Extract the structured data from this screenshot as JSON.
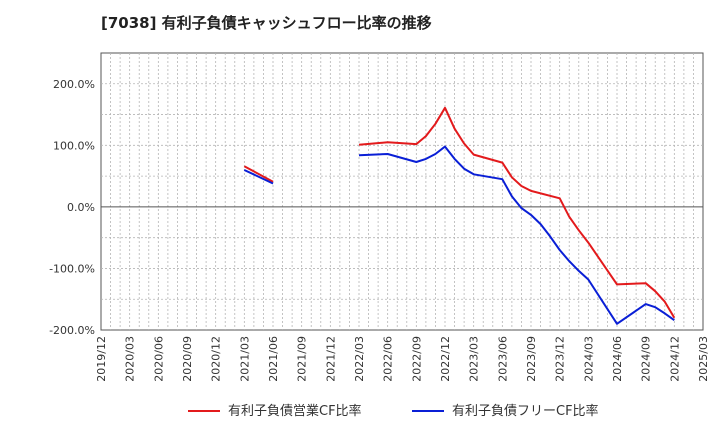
{
  "chart_data": {
    "type": "line",
    "title": "[7038]  有利子負債キャッシュフロー比率の推移",
    "xlabel": "",
    "ylabel": "",
    "x_ticks": [
      "2019/12",
      "2020/03",
      "2020/06",
      "2020/09",
      "2020/12",
      "2021/03",
      "2021/06",
      "2021/09",
      "2021/12",
      "2022/03",
      "2022/06",
      "2022/09",
      "2022/12",
      "2023/03",
      "2023/06",
      "2023/09",
      "2023/12",
      "2024/03",
      "2024/06",
      "2024/09",
      "2024/12",
      "2025/03"
    ],
    "y_ticks": [
      "200.0%",
      "100.0%",
      "0.0%",
      "-100.0%",
      "-200.0%"
    ],
    "ylim": [
      -200,
      250
    ],
    "grid": true,
    "legend_position": "bottom",
    "series": [
      {
        "name": "有利子負債営業CF比率",
        "color": "#e31a1c",
        "segments": [
          [
            [
              "2021/03",
              66
            ],
            [
              "2021/06",
              41
            ]
          ],
          [
            [
              "2022/03",
              101
            ],
            [
              "2022/06",
              105
            ],
            [
              "2022/09",
              102
            ],
            [
              "2022/10",
              115
            ],
            [
              "2022/11",
              135
            ],
            [
              "2022/12",
              161
            ],
            [
              "2023/01",
              127
            ],
            [
              "2023/02",
              103
            ],
            [
              "2023/03",
              85
            ],
            [
              "2023/06",
              72
            ],
            [
              "2023/07",
              48
            ],
            [
              "2023/08",
              34
            ],
            [
              "2023/09",
              26
            ],
            [
              "2023/12",
              14
            ],
            [
              "2024/01",
              -16
            ],
            [
              "2024/02",
              -38
            ],
            [
              "2024/03",
              -58
            ],
            [
              "2024/06",
              -126
            ],
            [
              "2024/09",
              -124
            ],
            [
              "2024/10",
              -137
            ],
            [
              "2024/11",
              -154
            ],
            [
              "2024/12",
              -180
            ]
          ]
        ]
      },
      {
        "name": "有利子負債フリーCF比率",
        "color": "#0a1fd6",
        "segments": [
          [
            [
              "2021/03",
              60
            ],
            [
              "2021/06",
              38
            ]
          ],
          [
            [
              "2022/03",
              84
            ],
            [
              "2022/06",
              86
            ],
            [
              "2022/09",
              73
            ],
            [
              "2022/10",
              78
            ],
            [
              "2022/11",
              86
            ],
            [
              "2022/12",
              98
            ],
            [
              "2023/01",
              78
            ],
            [
              "2023/02",
              62
            ],
            [
              "2023/03",
              53
            ],
            [
              "2023/06",
              45
            ],
            [
              "2023/07",
              17
            ],
            [
              "2023/08",
              -2
            ],
            [
              "2023/09",
              -13
            ],
            [
              "2023/10",
              -28
            ],
            [
              "2023/11",
              -48
            ],
            [
              "2023/12",
              -70
            ],
            [
              "2024/01",
              -88
            ],
            [
              "2024/02",
              -104
            ],
            [
              "2024/03",
              -118
            ],
            [
              "2024/06",
              -190
            ],
            [
              "2024/09",
              -158
            ],
            [
              "2024/10",
              -163
            ],
            [
              "2024/11",
              -173
            ],
            [
              "2024/12",
              -184
            ]
          ]
        ]
      }
    ]
  }
}
